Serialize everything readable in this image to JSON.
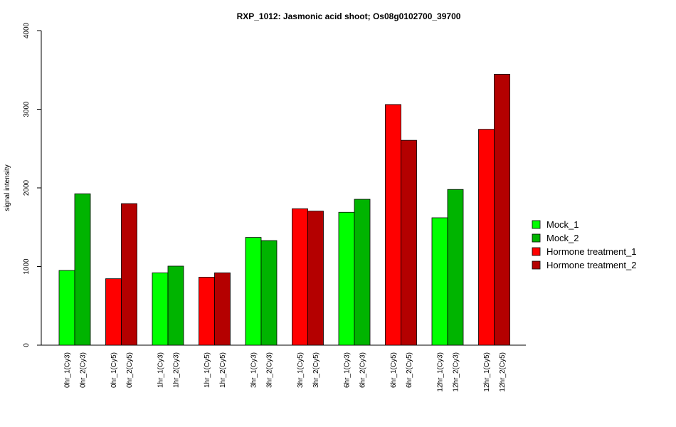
{
  "chart_data": {
    "type": "bar",
    "title": "RXP_1012: Jasmonic acid shoot; Os08g0102700_39700",
    "xlabel": "",
    "ylabel": "signal intensity",
    "ylim": [
      0,
      4000
    ],
    "yticks": [
      0,
      1000,
      2000,
      3000,
      4000
    ],
    "grid": false,
    "legend_position": "right",
    "colors": {
      "Mock_1": "#00ff00",
      "Mock_2": "#00b400",
      "Hormone treatment_1": "#ff0000",
      "Hormone treatment_2": "#b40000"
    },
    "legend": [
      "Mock_1",
      "Mock_2",
      "Hormone treatment_1",
      "Hormone treatment_2"
    ],
    "bars": [
      {
        "label": "0hr_1(Cy3)",
        "value": 950,
        "series": "Mock_1"
      },
      {
        "label": "0hr_2(Cy3)",
        "value": 1925,
        "series": "Mock_2"
      },
      {
        "label": "0hr_1(Cy5)",
        "value": 845,
        "series": "Hormone treatment_1"
      },
      {
        "label": "0hr_2(Cy5)",
        "value": 1800,
        "series": "Hormone treatment_2"
      },
      {
        "label": "1hr_1(Cy3)",
        "value": 920,
        "series": "Mock_1"
      },
      {
        "label": "1hr_2(Cy3)",
        "value": 1005,
        "series": "Mock_2"
      },
      {
        "label": "1hr_1(Cy5)",
        "value": 865,
        "series": "Hormone treatment_1"
      },
      {
        "label": "1hr_2(Cy5)",
        "value": 920,
        "series": "Hormone treatment_2"
      },
      {
        "label": "3hr_1(Cy3)",
        "value": 1370,
        "series": "Mock_1"
      },
      {
        "label": "3hr_2(Cy3)",
        "value": 1330,
        "series": "Mock_2"
      },
      {
        "label": "3hr_1(Cy5)",
        "value": 1735,
        "series": "Hormone treatment_1"
      },
      {
        "label": "3hr_2(Cy5)",
        "value": 1705,
        "series": "Hormone treatment_2"
      },
      {
        "label": "6hr_1(Cy3)",
        "value": 1690,
        "series": "Mock_1"
      },
      {
        "label": "6hr_2(Cy3)",
        "value": 1855,
        "series": "Mock_2"
      },
      {
        "label": "6hr_1(Cy5)",
        "value": 3060,
        "series": "Hormone treatment_1"
      },
      {
        "label": "6hr_2(Cy5)",
        "value": 2605,
        "series": "Hormone treatment_2"
      },
      {
        "label": "12hr_1(Cy3)",
        "value": 1620,
        "series": "Mock_1"
      },
      {
        "label": "12hr_2(Cy3)",
        "value": 1980,
        "series": "Mock_2"
      },
      {
        "label": "12hr_1(Cy5)",
        "value": 2745,
        "series": "Hormone treatment_1"
      },
      {
        "label": "12hr_2(Cy5)",
        "value": 3445,
        "series": "Hormone treatment_2"
      }
    ]
  }
}
